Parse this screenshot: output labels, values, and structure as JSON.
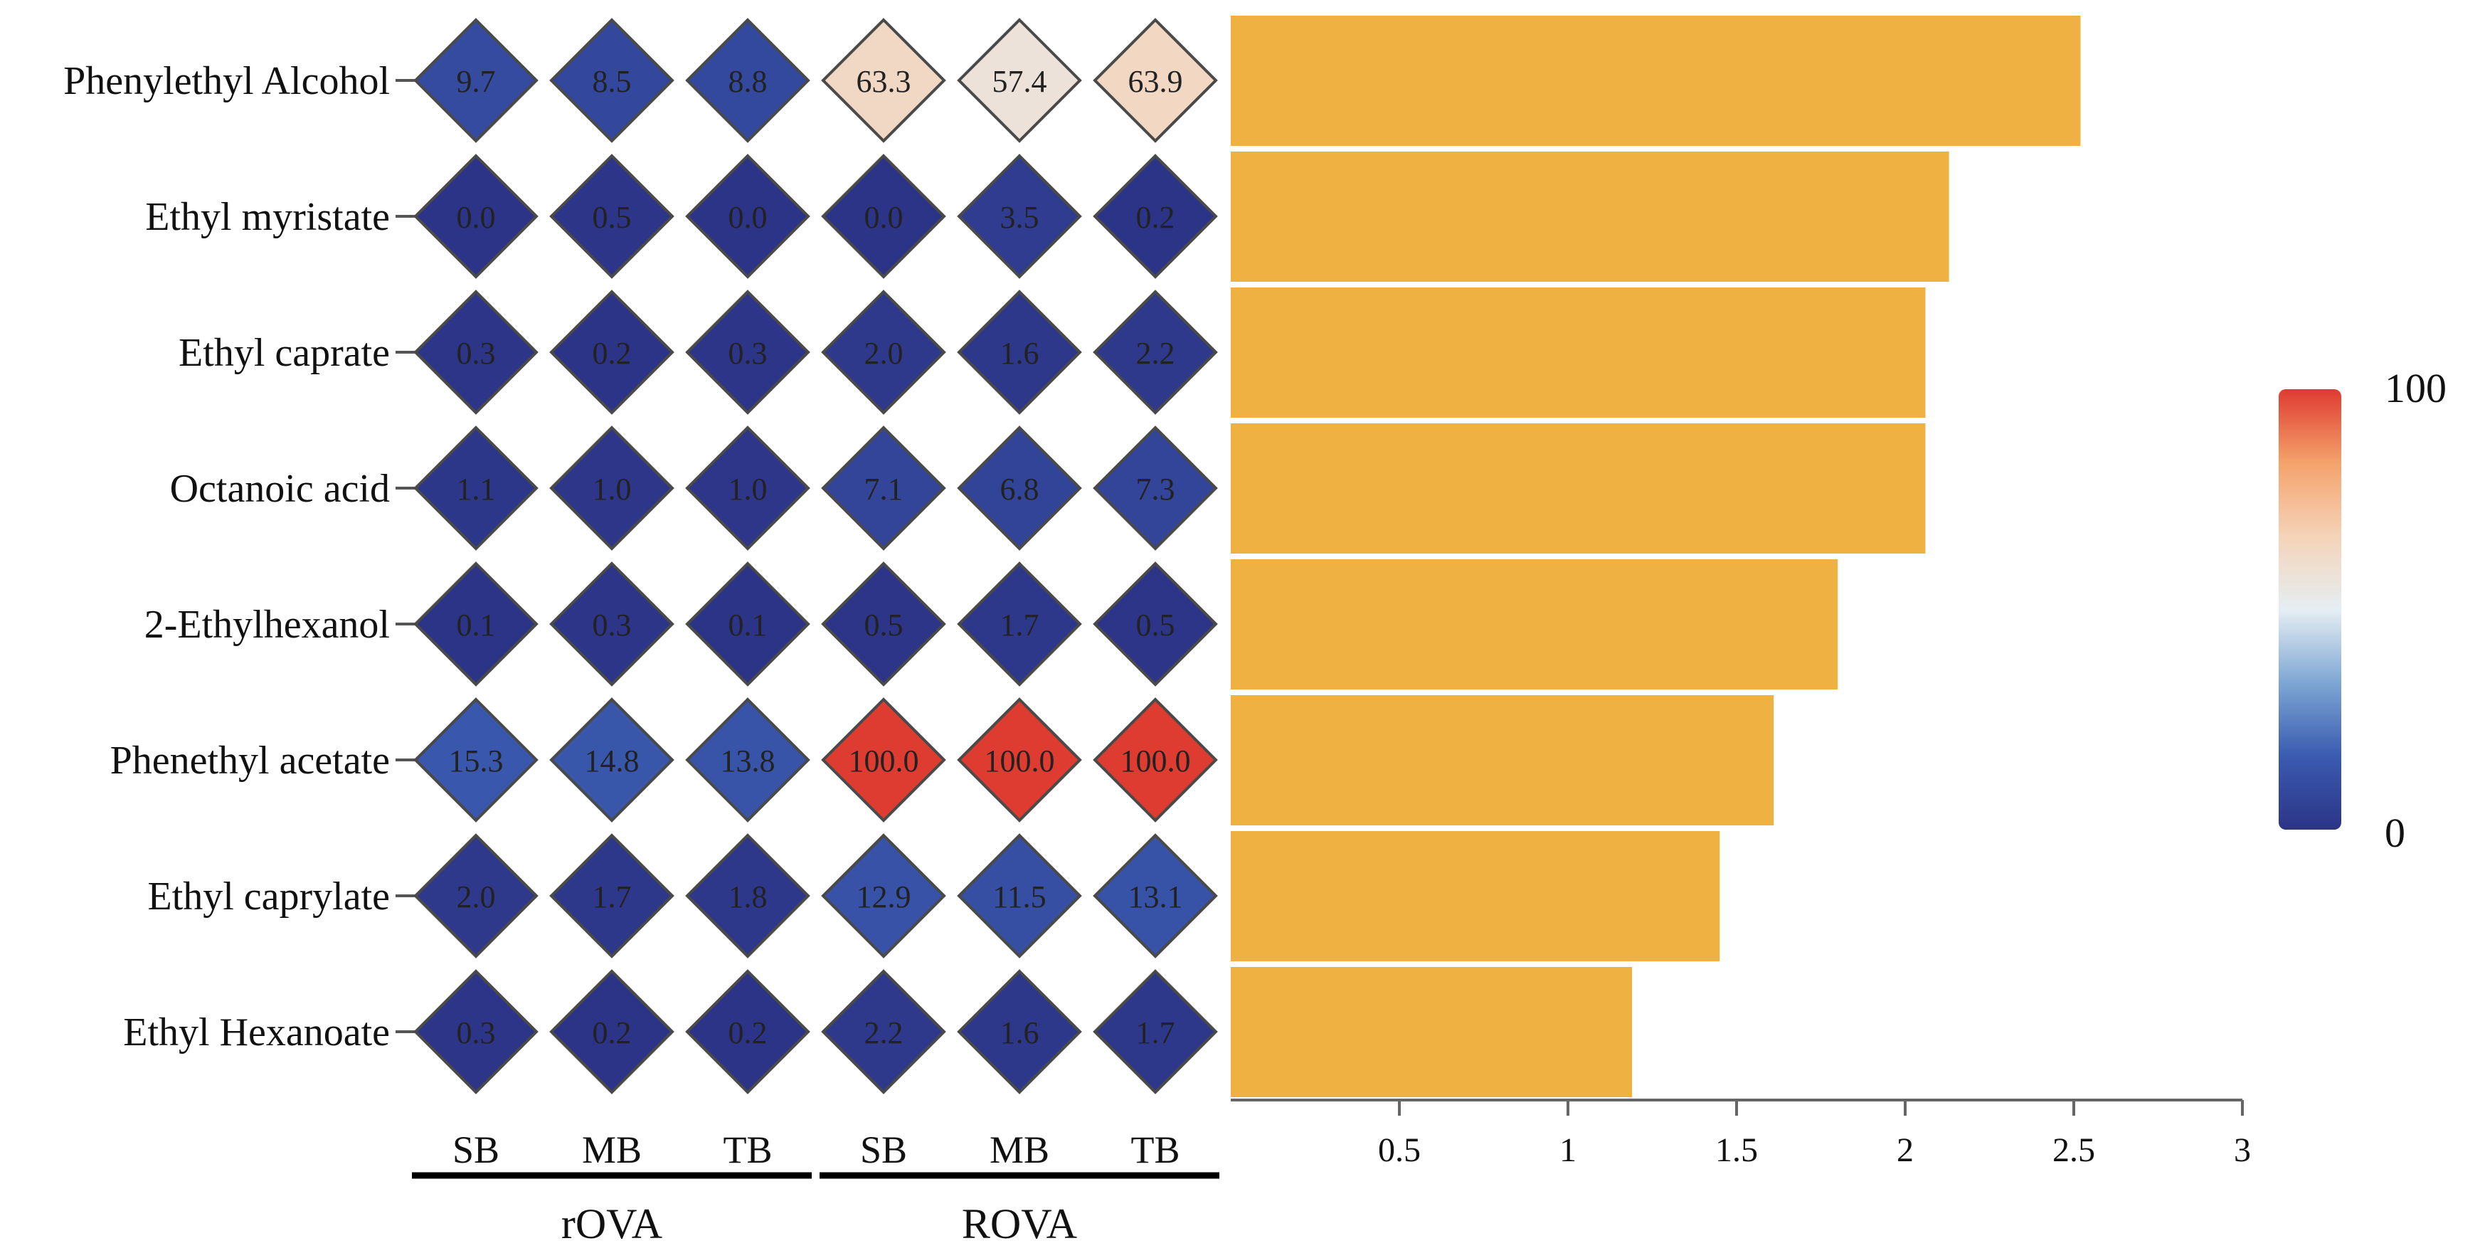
{
  "chart_data": {
    "type": "heatmap",
    "rows": [
      "Phenylethyl Alcohol",
      "Ethyl myristate",
      "Ethyl caprate",
      "Octanoic acid",
      "2-Ethylhexanol",
      "Phenethyl acetate",
      "Ethyl caprylate",
      "Ethyl Hexanoate"
    ],
    "columns": [
      "SB",
      "MB",
      "TB",
      "SB",
      "MB",
      "TB"
    ],
    "groups": [
      {
        "name": "rOVA",
        "columns": [
          0,
          1,
          2
        ]
      },
      {
        "name": "ROVA",
        "columns": [
          3,
          4,
          5
        ]
      }
    ],
    "values": [
      [
        "9.7",
        "8.5",
        "8.8",
        "63.3",
        "57.4",
        "63.9"
      ],
      [
        "0.0",
        "0.5",
        "0.0",
        "0.0",
        "3.5",
        "0.2"
      ],
      [
        "0.3",
        "0.2",
        "0.3",
        "2.0",
        "1.6",
        "2.2"
      ],
      [
        "1.1",
        "1.0",
        "1.0",
        "7.1",
        "6.8",
        "7.3"
      ],
      [
        "0.1",
        "0.3",
        "0.1",
        "0.5",
        "1.7",
        "0.5"
      ],
      [
        "15.3",
        "14.8",
        "13.8",
        "100.0",
        "100.0",
        "100.0"
      ],
      [
        "2.0",
        "1.7",
        "1.8",
        "12.9",
        "11.5",
        "13.1"
      ],
      [
        "0.3",
        "0.2",
        "0.2",
        "2.2",
        "1.6",
        "1.7"
      ]
    ],
    "colorbar": {
      "min": 0,
      "max": 100,
      "min_label": "0",
      "max_label": "100",
      "colors": [
        "#2c3487",
        "#3a5bb0",
        "#7ea6d3",
        "#e5eef3",
        "#f4d3b8",
        "#f4a26b",
        "#de3b31"
      ]
    },
    "bars": {
      "type": "bar",
      "orientation": "horizontal",
      "values": [
        2.52,
        2.13,
        2.06,
        2.06,
        1.8,
        1.61,
        1.45,
        1.19
      ],
      "xlim": [
        0,
        3
      ],
      "ticks": [
        0.5,
        1,
        1.5,
        2,
        2.5,
        3
      ],
      "tick_labels": [
        "0.5",
        "1",
        "1.5",
        "2",
        "2.5",
        "3"
      ],
      "color": "#f0b143"
    }
  }
}
